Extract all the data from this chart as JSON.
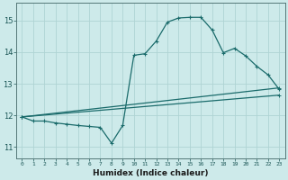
{
  "title": "",
  "xlabel": "Humidex (Indice chaleur)",
  "ylabel": "",
  "background_color": "#cdeaea",
  "grid_color": "#afd4d4",
  "line_color": "#1a6b6b",
  "x_ticks": [
    0,
    1,
    2,
    3,
    4,
    5,
    6,
    7,
    8,
    9,
    10,
    11,
    12,
    13,
    14,
    15,
    16,
    17,
    18,
    19,
    20,
    21,
    22,
    23
  ],
  "y_ticks": [
    11,
    12,
    13,
    14,
    15
  ],
  "ylim": [
    10.65,
    15.55
  ],
  "xlim": [
    -0.5,
    23.5
  ],
  "series": [
    {
      "x": [
        0,
        1,
        2,
        3,
        4,
        5,
        6,
        7,
        8,
        9,
        10,
        11,
        12,
        13,
        14,
        15,
        16,
        17,
        18,
        19,
        20,
        21,
        22,
        23
      ],
      "y": [
        11.95,
        11.82,
        11.82,
        11.76,
        11.72,
        11.68,
        11.65,
        11.62,
        11.12,
        11.68,
        13.9,
        13.95,
        14.35,
        14.95,
        15.08,
        15.1,
        15.1,
        14.7,
        13.98,
        14.12,
        13.88,
        13.55,
        13.28,
        12.82
      ]
    },
    {
      "x": [
        0,
        23
      ],
      "y": [
        11.95,
        12.87
      ]
    },
    {
      "x": [
        0,
        23
      ],
      "y": [
        11.95,
        12.64
      ]
    }
  ]
}
